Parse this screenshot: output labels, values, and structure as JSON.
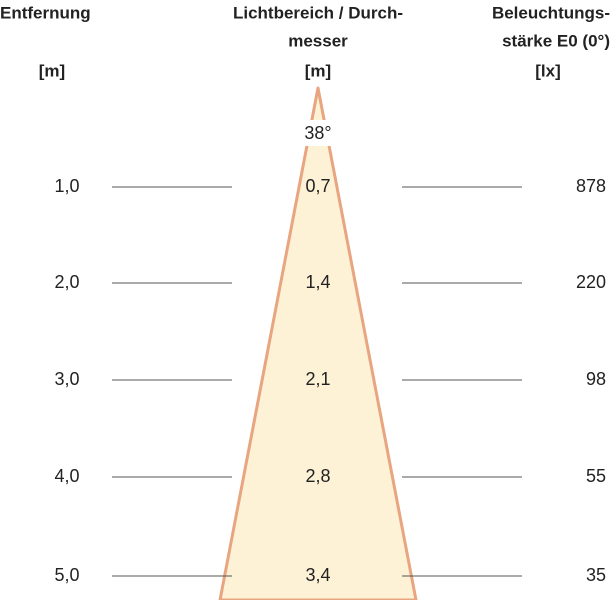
{
  "headers": {
    "distance": [
      "Entfernung",
      "[m]"
    ],
    "diameter": [
      "Lichtbereich / Durch-",
      "messer",
      "[m]"
    ],
    "illuminance": [
      "Beleuchtungs-",
      "stärke E0 (0°)",
      "[lx]"
    ]
  },
  "angle": "38°",
  "rows": [
    [
      "1,0",
      "0,7",
      "878"
    ],
    [
      "2,0",
      "1,4",
      "220"
    ],
    [
      "3,0",
      "2,1",
      "98"
    ],
    [
      "4,0",
      "2,8",
      "55"
    ],
    [
      "5,0",
      "3,4",
      "35"
    ]
  ]
}
